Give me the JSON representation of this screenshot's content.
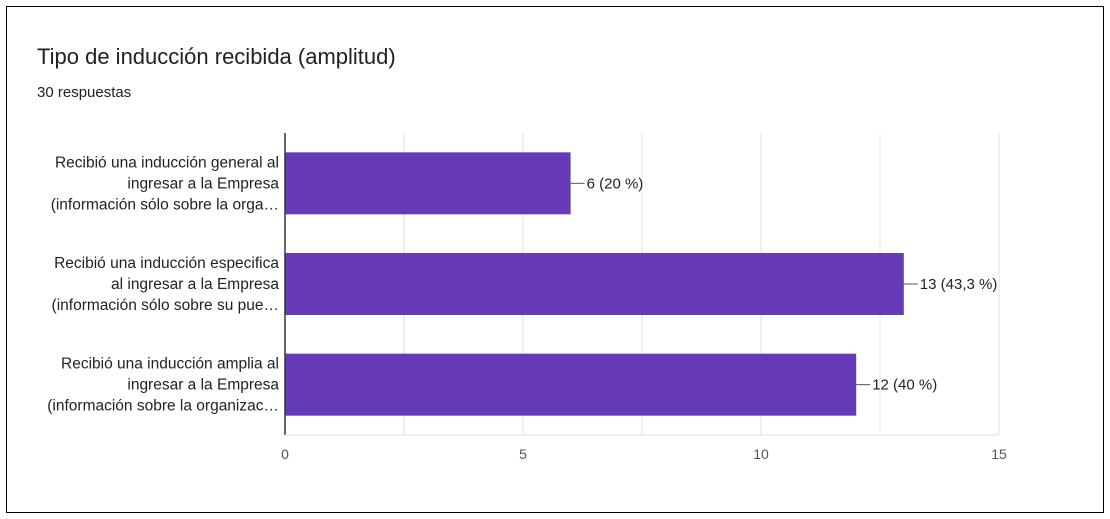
{
  "header": {
    "title": "Tipo de inducción recibida (amplitud)",
    "subtitle": "30 respuestas"
  },
  "colors": {
    "bar": "#673ab7",
    "grid": "#e0e0e0",
    "axis": "#333333"
  },
  "chart_data": {
    "type": "bar",
    "orientation": "horizontal",
    "categories": [
      [
        "Recibió una inducción general al",
        "ingresar a la Empresa",
        "(información sólo sobre la orga…"
      ],
      [
        "Recibió una inducción especifica",
        "al ingresar a la Empresa",
        "(información sólo sobre su pue…"
      ],
      [
        "Recibió una inducción amplia al",
        "ingresar a la Empresa",
        "(información sobre la organizac…"
      ]
    ],
    "values": [
      6,
      13,
      12
    ],
    "data_labels": [
      "6 (20 %)",
      "13 (43,3 %)",
      "12 (40 %)"
    ],
    "xlim": [
      0,
      15
    ],
    "xticks": [
      0,
      5,
      10,
      15
    ],
    "grid": true,
    "legend": "none"
  }
}
